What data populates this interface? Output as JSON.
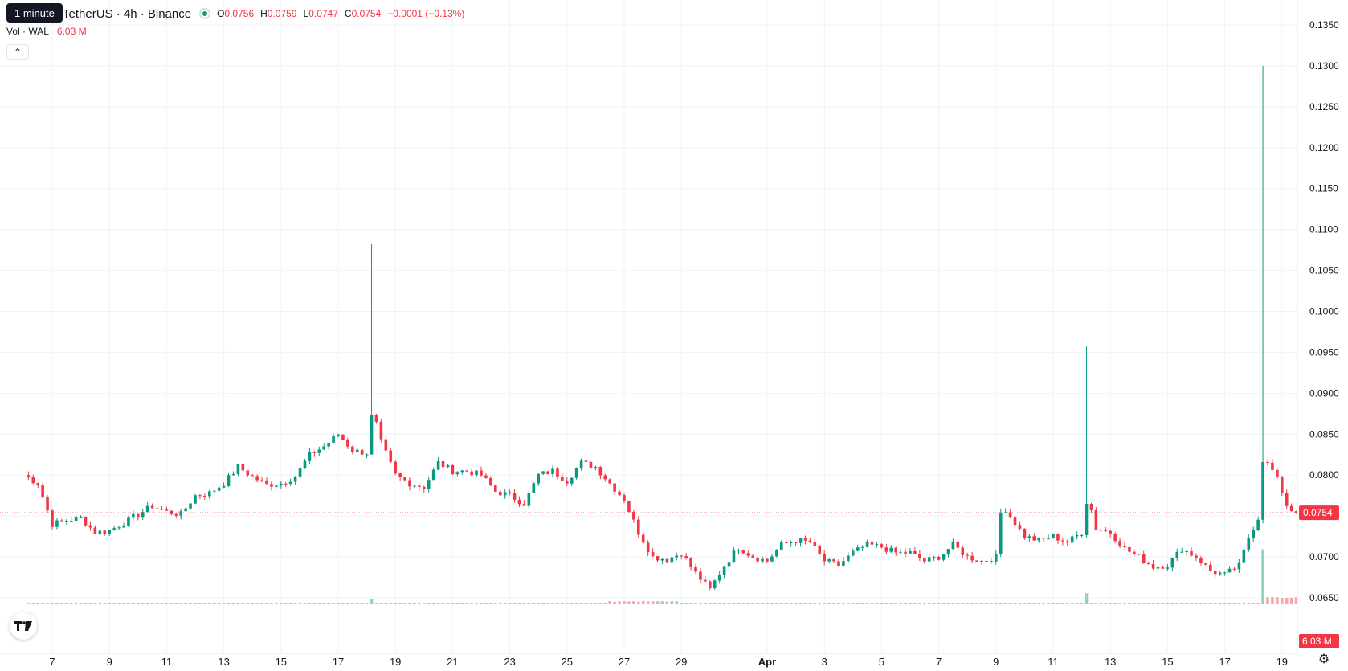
{
  "header": {
    "tooltip": "1 minute",
    "symbol": "TetherUS · 4h · Binance",
    "ohlc": {
      "o_label": "O",
      "o": "0.0756",
      "h_label": "H",
      "h": "0.0759",
      "l_label": "L",
      "l": "0.0747",
      "c_label": "C",
      "c": "0.0754",
      "change": "−0.0001 (−0.13%)"
    },
    "volume_label": "Vol · WAL",
    "volume_value": "6.03 M",
    "collapse_icon": "chevron-up-icon"
  },
  "colors": {
    "up": "#089981",
    "down": "#f23645",
    "up_volume": "#8fd3c7",
    "down_volume": "#f7a9a7",
    "grid": "#f0f3fa"
  },
  "chart_data": {
    "type": "candlestick",
    "interval": "4h",
    "x_ticks": [
      "7",
      "9",
      "11",
      "13",
      "15",
      "17",
      "19",
      "21",
      "23",
      "25",
      "27",
      "29",
      "Apr",
      "3",
      "5",
      "7",
      "9",
      "11",
      "13",
      "15",
      "17",
      "19"
    ],
    "y_ticks": [
      "0.0650",
      "0.0700",
      "0.0750",
      "0.0800",
      "0.0850",
      "0.0900",
      "0.0950",
      "0.1000",
      "0.1050",
      "0.1100",
      "0.1150",
      "0.1200",
      "0.1250",
      "0.1300",
      "0.1350"
    ],
    "ylim": [
      0.06,
      0.138
    ],
    "last_price": 0.0754,
    "last_price_label": "0.0754",
    "volume_badge": "6.03 M",
    "candle_keypoints": [
      {
        "day": 6.0,
        "price": 0.08
      },
      {
        "day": 6.5,
        "price": 0.079
      },
      {
        "day": 7.0,
        "price": 0.074
      },
      {
        "day": 7.5,
        "price": 0.0745
      },
      {
        "day": 8.0,
        "price": 0.0748
      },
      {
        "day": 8.5,
        "price": 0.073
      },
      {
        "day": 9.0,
        "price": 0.0732
      },
      {
        "day": 9.5,
        "price": 0.0742
      },
      {
        "day": 10.0,
        "price": 0.0752
      },
      {
        "day": 10.5,
        "price": 0.0762
      },
      {
        "day": 11.0,
        "price": 0.0755
      },
      {
        "day": 11.5,
        "price": 0.0752
      },
      {
        "day": 12.0,
        "price": 0.0775
      },
      {
        "day": 12.5,
        "price": 0.0778
      },
      {
        "day": 13.0,
        "price": 0.079
      },
      {
        "day": 13.5,
        "price": 0.081
      },
      {
        "day": 14.0,
        "price": 0.0798
      },
      {
        "day": 14.5,
        "price": 0.0788
      },
      {
        "day": 15.0,
        "price": 0.079
      },
      {
        "day": 15.5,
        "price": 0.0798
      },
      {
        "day": 16.0,
        "price": 0.0825
      },
      {
        "day": 16.5,
        "price": 0.0835
      },
      {
        "day": 17.0,
        "price": 0.085
      },
      {
        "day": 17.5,
        "price": 0.083
      },
      {
        "day": 18.0,
        "price": 0.0827
      },
      {
        "day": 18.2,
        "price": 0.088
      },
      {
        "day": 18.5,
        "price": 0.084
      },
      {
        "day": 19.0,
        "price": 0.08
      },
      {
        "day": 19.5,
        "price": 0.079
      },
      {
        "day": 20.0,
        "price": 0.0785
      },
      {
        "day": 20.5,
        "price": 0.0815
      },
      {
        "day": 21.0,
        "price": 0.0805
      },
      {
        "day": 21.5,
        "price": 0.0805
      },
      {
        "day": 22.0,
        "price": 0.08
      },
      {
        "day": 22.5,
        "price": 0.078
      },
      {
        "day": 23.0,
        "price": 0.0775
      },
      {
        "day": 23.5,
        "price": 0.0765
      },
      {
        "day": 24.0,
        "price": 0.08
      },
      {
        "day": 24.5,
        "price": 0.0805
      },
      {
        "day": 25.0,
        "price": 0.0793
      },
      {
        "day": 25.5,
        "price": 0.0815
      },
      {
        "day": 26.0,
        "price": 0.081
      },
      {
        "day": 26.5,
        "price": 0.079
      },
      {
        "day": 27.0,
        "price": 0.077
      },
      {
        "day": 27.5,
        "price": 0.073
      },
      {
        "day": 28.0,
        "price": 0.07
      },
      {
        "day": 28.5,
        "price": 0.0697
      },
      {
        "day": 29.0,
        "price": 0.0705
      },
      {
        "day": 29.5,
        "price": 0.068
      },
      {
        "day": 30.0,
        "price": 0.066
      },
      {
        "day": 30.5,
        "price": 0.069
      },
      {
        "day": 31.0,
        "price": 0.0712
      },
      {
        "day": 31.5,
        "price": 0.07
      },
      {
        "day": 32.0,
        "price": 0.0695
      },
      {
        "day": 32.5,
        "price": 0.0715
      },
      {
        "day": 33.0,
        "price": 0.072
      },
      {
        "day": 33.5,
        "price": 0.0718
      },
      {
        "day": 34.0,
        "price": 0.0695
      },
      {
        "day": 34.5,
        "price": 0.069
      },
      {
        "day": 35.0,
        "price": 0.0705
      },
      {
        "day": 35.5,
        "price": 0.0715
      },
      {
        "day": 36.0,
        "price": 0.0712
      },
      {
        "day": 36.5,
        "price": 0.0705
      },
      {
        "day": 37.0,
        "price": 0.0705
      },
      {
        "day": 37.5,
        "price": 0.0695
      },
      {
        "day": 38.0,
        "price": 0.07
      },
      {
        "day": 38.5,
        "price": 0.0715
      },
      {
        "day": 39.0,
        "price": 0.07
      },
      {
        "day": 39.5,
        "price": 0.0695
      },
      {
        "day": 40.0,
        "price": 0.07
      },
      {
        "day": 40.2,
        "price": 0.0765
      },
      {
        "day": 40.5,
        "price": 0.075
      },
      {
        "day": 41.0,
        "price": 0.0725
      },
      {
        "day": 41.5,
        "price": 0.072
      },
      {
        "day": 42.0,
        "price": 0.0725
      },
      {
        "day": 42.5,
        "price": 0.0718
      },
      {
        "day": 43.0,
        "price": 0.073
      },
      {
        "day": 43.2,
        "price": 0.0775
      },
      {
        "day": 43.5,
        "price": 0.0735
      },
      {
        "day": 44.0,
        "price": 0.073
      },
      {
        "day": 44.5,
        "price": 0.071
      },
      {
        "day": 45.0,
        "price": 0.07
      },
      {
        "day": 45.5,
        "price": 0.0688
      },
      {
        "day": 46.0,
        "price": 0.069
      },
      {
        "day": 46.5,
        "price": 0.071
      },
      {
        "day": 47.0,
        "price": 0.07
      },
      {
        "day": 47.5,
        "price": 0.0683
      },
      {
        "day": 48.0,
        "price": 0.0678
      },
      {
        "day": 48.5,
        "price": 0.069
      },
      {
        "day": 48.9,
        "price": 0.073
      },
      {
        "day": 49.2,
        "price": 0.075
      },
      {
        "day": 49.3,
        "price": 0.082
      },
      {
        "day": 49.6,
        "price": 0.081
      },
      {
        "day": 49.9,
        "price": 0.079
      },
      {
        "day": 50.2,
        "price": 0.076
      },
      {
        "day": 50.5,
        "price": 0.0754
      }
    ],
    "wick_spikes": [
      {
        "day": 18.2,
        "high": 0.1082
      },
      {
        "day": 43.2,
        "high": 0.0957
      },
      {
        "day": 49.3,
        "high": 0.13
      }
    ],
    "volume_spikes": [
      {
        "day": 18.2,
        "value": 2.3
      },
      {
        "day": 43.2,
        "value": 4.8
      },
      {
        "day": 49.3,
        "value": 24.0
      }
    ]
  }
}
